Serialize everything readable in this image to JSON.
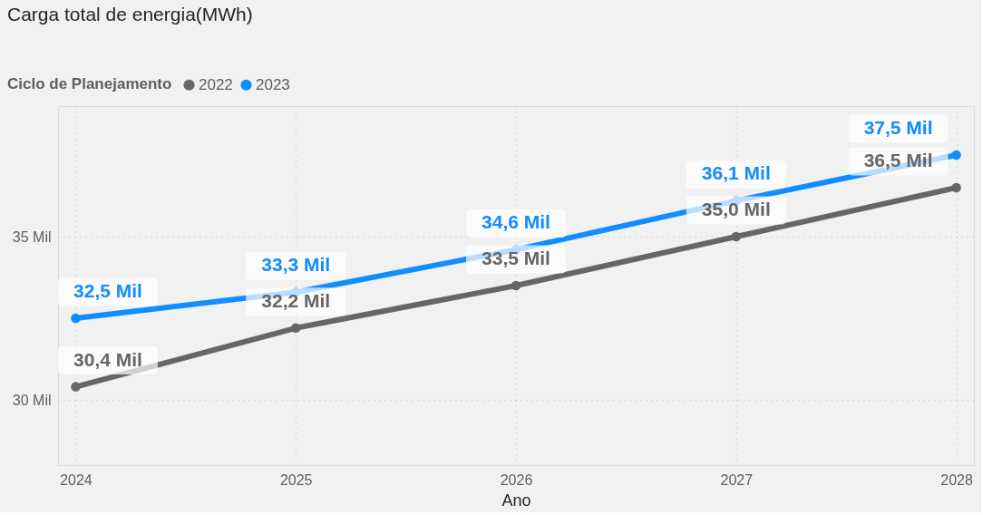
{
  "chart_data": {
    "type": "line",
    "title": "Carga total de energia(MWh)",
    "xlabel": "Ano",
    "legend_title": "Ciclo de Planejamento",
    "categories": [
      "2024",
      "2025",
      "2026",
      "2027",
      "2028"
    ],
    "series": [
      {
        "name": "2022",
        "color": "#666666",
        "values": [
          30.4,
          32.2,
          33.5,
          35.0,
          36.5
        ],
        "value_labels": [
          "30,4 Mil",
          "32,2 Mil",
          "33,5 Mil",
          "35,0 Mil",
          "36,5 Mil"
        ]
      },
      {
        "name": "2023",
        "color": "#118dff",
        "values": [
          32.5,
          33.3,
          34.6,
          36.1,
          37.5
        ],
        "value_labels": [
          "32,5 Mil",
          "33,3 Mil",
          "34,6 Mil",
          "36,1 Mil",
          "37,5 Mil"
        ]
      }
    ],
    "ylim": [
      28,
      39
    ],
    "yticks": [
      {
        "value": 30,
        "label": "30 Mil"
      },
      {
        "value": 35,
        "label": "35 Mil"
      }
    ],
    "grid": true,
    "legend": "top left",
    "marker": "circle",
    "line_style": "solid"
  }
}
